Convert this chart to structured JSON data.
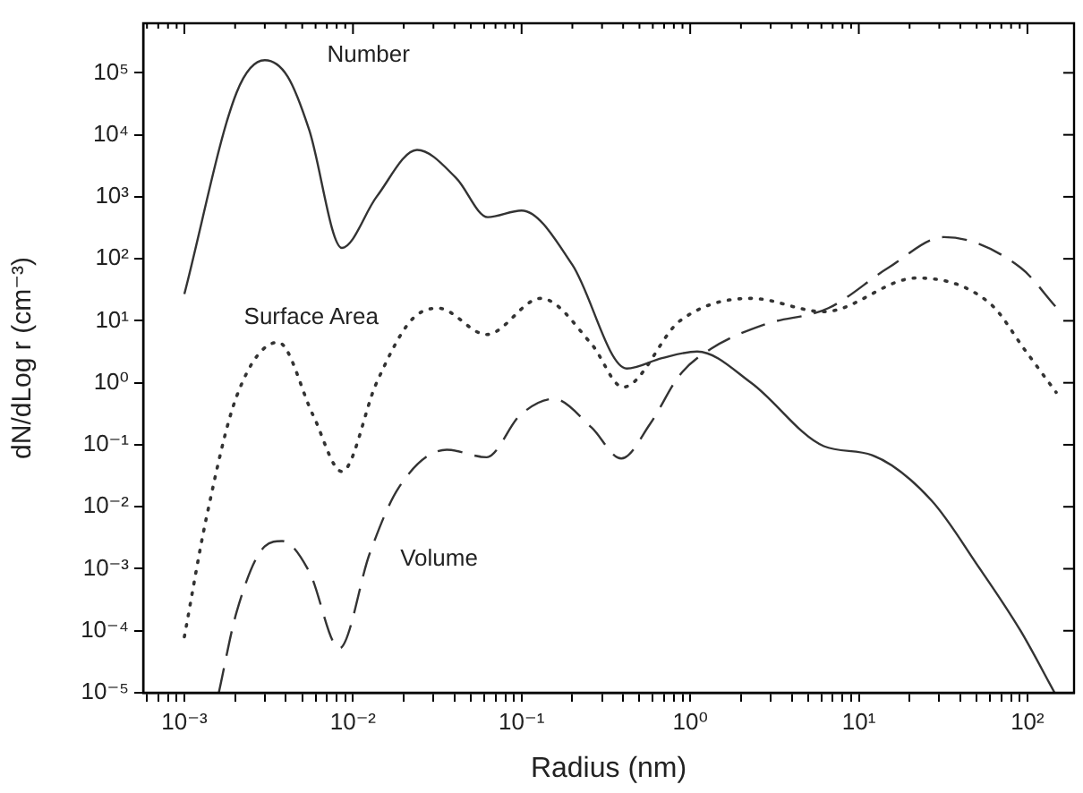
{
  "chart_data": {
    "type": "line",
    "xlabel": "Radius (nm)",
    "ylabel": "dN/dLog r (cm⁻³)",
    "log": "xy",
    "grid": false,
    "legend": false,
    "marker": "none",
    "xlim": [
      0.00057,
      189
    ],
    "ylim": [
      1e-05,
      630000
    ],
    "xticks": [
      {
        "value": 0.0006,
        "label": null
      },
      {
        "value": 0.0007,
        "label": null
      },
      {
        "value": 0.0008,
        "label": null
      },
      {
        "value": 0.0009,
        "label": null
      },
      {
        "value": 0.001,
        "label": "10⁻³"
      },
      {
        "value": 0.002,
        "label": null
      },
      {
        "value": 0.003,
        "label": null
      },
      {
        "value": 0.004,
        "label": null
      },
      {
        "value": 0.005,
        "label": null
      },
      {
        "value": 0.006,
        "label": null
      },
      {
        "value": 0.007,
        "label": null
      },
      {
        "value": 0.008,
        "label": null
      },
      {
        "value": 0.009,
        "label": null
      },
      {
        "value": 0.01,
        "label": "10⁻²"
      },
      {
        "value": 0.02,
        "label": null
      },
      {
        "value": 0.03,
        "label": null
      },
      {
        "value": 0.04,
        "label": null
      },
      {
        "value": 0.05,
        "label": null
      },
      {
        "value": 0.06,
        "label": null
      },
      {
        "value": 0.07,
        "label": null
      },
      {
        "value": 0.08,
        "label": null
      },
      {
        "value": 0.09,
        "label": null
      },
      {
        "value": 0.1,
        "label": "10⁻¹"
      },
      {
        "value": 0.2,
        "label": null
      },
      {
        "value": 0.3,
        "label": null
      },
      {
        "value": 0.4,
        "label": null
      },
      {
        "value": 0.5,
        "label": null
      },
      {
        "value": 0.6,
        "label": null
      },
      {
        "value": 0.7,
        "label": null
      },
      {
        "value": 0.8,
        "label": null
      },
      {
        "value": 0.9,
        "label": null
      },
      {
        "value": 1,
        "label": "10⁰"
      },
      {
        "value": 2,
        "label": null
      },
      {
        "value": 3,
        "label": null
      },
      {
        "value": 4,
        "label": null
      },
      {
        "value": 5,
        "label": null
      },
      {
        "value": 6,
        "label": null
      },
      {
        "value": 7,
        "label": null
      },
      {
        "value": 8,
        "label": null
      },
      {
        "value": 9,
        "label": null
      },
      {
        "value": 10,
        "label": "10¹"
      },
      {
        "value": 20,
        "label": null
      },
      {
        "value": 30,
        "label": null
      },
      {
        "value": 40,
        "label": null
      },
      {
        "value": 50,
        "label": null
      },
      {
        "value": 60,
        "label": null
      },
      {
        "value": 70,
        "label": null
      },
      {
        "value": 80,
        "label": null
      },
      {
        "value": 90,
        "label": null
      },
      {
        "value": 100,
        "label": "10²"
      }
    ],
    "yticks": [
      {
        "value": 1e-05,
        "label": "10⁻⁵"
      },
      {
        "value": 0.0001,
        "label": "10⁻⁴"
      },
      {
        "value": 0.001,
        "label": "10⁻³"
      },
      {
        "value": 0.01,
        "label": "10⁻²"
      },
      {
        "value": 0.1,
        "label": "10⁻¹"
      },
      {
        "value": 1,
        "label": "10⁰"
      },
      {
        "value": 10,
        "label": "10¹"
      },
      {
        "value": 100,
        "label": "10²"
      },
      {
        "value": 1000,
        "label": "10³"
      },
      {
        "value": 10000,
        "label": "10⁴"
      },
      {
        "value": 100000,
        "label": "10⁵"
      }
    ],
    "series": [
      {
        "name": "Number",
        "color": "#333333",
        "line_style": "solid",
        "x": [
          0.001,
          0.00204,
          0.003,
          0.0041,
          0.0055,
          0.0086,
          0.0138,
          0.024,
          0.041,
          0.063,
          0.1,
          0.2,
          0.42,
          0.68,
          1.1,
          2.3,
          6.2,
          12,
          27,
          51,
          91,
          145
        ],
        "values": [
          27,
          48000,
          160000,
          87000,
          12000,
          150,
          1000,
          5700,
          2000,
          470,
          600,
          80,
          1.7,
          2.5,
          3.2,
          1.0,
          0.095,
          0.068,
          0.0126,
          0.0011,
          0.0001,
          1e-05
        ]
      },
      {
        "name": "Surface Area",
        "color": "#333333",
        "line_style": "dotted",
        "x": [
          0.001,
          0.00135,
          0.00204,
          0.0036,
          0.0058,
          0.0086,
          0.0138,
          0.022,
          0.032,
          0.062,
          0.13,
          0.26,
          0.4,
          0.87,
          2.3,
          6.2,
          22,
          60,
          98,
          148
        ],
        "values": [
          8e-05,
          0.0066,
          0.6,
          4.5,
          0.3,
          0.037,
          1,
          10,
          16,
          6,
          23,
          4.2,
          0.85,
          10,
          23,
          14,
          49,
          19,
          3.2,
          0.7
        ]
      },
      {
        "name": "Volume",
        "color": "#333333",
        "line_style": "dashed",
        "x": [
          0.0016,
          0.00204,
          0.003,
          0.0038,
          0.0055,
          0.0083,
          0.0126,
          0.0186,
          0.036,
          0.062,
          0.098,
          0.155,
          0.26,
          0.39,
          0.58,
          0.87,
          1.32,
          2.75,
          6.6,
          15,
          32,
          91,
          148
        ],
        "values": [
          1e-05,
          0.0002,
          0.0023,
          0.0028,
          0.0009,
          5.2e-05,
          0.0018,
          0.02,
          0.083,
          0.063,
          0.3,
          0.55,
          0.19,
          0.06,
          0.22,
          1.35,
          3.5,
          8.7,
          16,
          72,
          224,
          72,
          16.6
        ]
      }
    ]
  }
}
